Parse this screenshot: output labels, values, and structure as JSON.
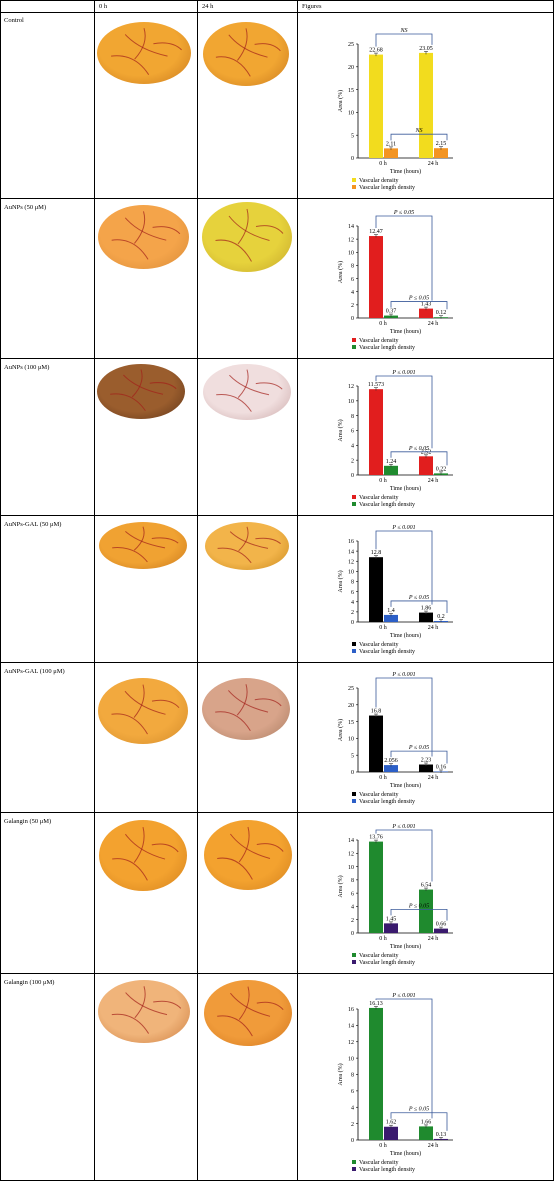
{
  "header": {
    "col0": "",
    "col1": "0 h",
    "col2": "24 h",
    "col3": "Figures"
  },
  "rows": [
    {
      "label": "Control"
    },
    {
      "label": "AuNPs (50 μM)"
    },
    {
      "label": "AuNPs (100 μM)"
    },
    {
      "label": "AuNPs-GAL (50 μM)"
    },
    {
      "label": "AuNPs-GAL (100 μM)"
    },
    {
      "label": "Galangin (50 μM)"
    },
    {
      "label": "Galangin (100 μM)"
    }
  ],
  "chart_data": [
    {
      "type": "bar",
      "categories": [
        "0 h",
        "24 h"
      ],
      "xlabel": "Time (hours)",
      "ylabel": "Area (%)",
      "ylim": [
        0,
        25
      ],
      "yticks": [
        0,
        5,
        10,
        15,
        20,
        25
      ],
      "series": [
        {
          "name": "Vascular density",
          "values": [
            22.68,
            23.05
          ],
          "labels": [
            "22.68",
            "23.05"
          ],
          "color": "#f2dc1e"
        },
        {
          "name": "Vascular length density",
          "values": [
            2.11,
            2.15
          ],
          "labels": [
            "2.11",
            "2.15"
          ],
          "color": "#f39422"
        }
      ],
      "annotations": [
        "NS",
        "NS"
      ]
    },
    {
      "type": "bar",
      "categories": [
        "0 h",
        "24 h"
      ],
      "xlabel": "Time (hours)",
      "ylabel": "Area (%)",
      "ylim": [
        0,
        14
      ],
      "yticks": [
        0,
        2,
        4,
        6,
        8,
        10,
        12,
        14
      ],
      "series": [
        {
          "name": "Vascular density",
          "values": [
            12.47,
            1.43
          ],
          "labels": [
            "12.47",
            "1.43"
          ],
          "color": "#e11e1e"
        },
        {
          "name": "Vascular length density",
          "values": [
            0.37,
            0.12
          ],
          "labels": [
            "0.37",
            "0.12"
          ],
          "color": "#1f8a2e"
        }
      ],
      "annotations": [
        "P ≤ 0.05",
        "P ≤ 0.05"
      ]
    },
    {
      "type": "bar",
      "categories": [
        "0 h",
        "24 h"
      ],
      "xlabel": "Time (hours)",
      "ylabel": "Area (%)",
      "ylim": [
        0,
        12
      ],
      "yticks": [
        0,
        2,
        4,
        6,
        8,
        10,
        12
      ],
      "series": [
        {
          "name": "Vascular density",
          "values": [
            11.573,
            2.52
          ],
          "labels": [
            "11.573",
            "2.52"
          ],
          "color": "#e11e1e"
        },
        {
          "name": "Vascular length density",
          "values": [
            1.24,
            0.22
          ],
          "labels": [
            "1.24",
            "0.22"
          ],
          "color": "#1f8a2e"
        }
      ],
      "annotations": [
        "P ≤ 0.001",
        "P ≤ 0.05"
      ]
    },
    {
      "type": "bar",
      "categories": [
        "0 h",
        "24 h"
      ],
      "xlabel": "Time (hours)",
      "ylabel": "Area (%)",
      "ylim": [
        0,
        16
      ],
      "yticks": [
        0,
        2,
        4,
        6,
        8,
        10,
        12,
        14,
        16
      ],
      "series": [
        {
          "name": "Vascular density",
          "values": [
            12.8,
            1.86
          ],
          "labels": [
            "12.8",
            "1.86"
          ],
          "color": "#000000"
        },
        {
          "name": "Vascular length density",
          "values": [
            1.4,
            0.2
          ],
          "labels": [
            "1.4",
            "0.2"
          ],
          "color": "#2c5fc7"
        }
      ],
      "annotations": [
        "P ≤ 0.001",
        "P ≤ 0.05"
      ]
    },
    {
      "type": "bar",
      "categories": [
        "0 h",
        "24 h"
      ],
      "xlabel": "Time (hours)",
      "ylabel": "Area (%)",
      "ylim": [
        0,
        25
      ],
      "yticks": [
        0,
        5,
        10,
        15,
        20,
        25
      ],
      "series": [
        {
          "name": "Vascular density",
          "values": [
            16.8,
            2.23
          ],
          "labels": [
            "16.8",
            "2.23"
          ],
          "color": "#000000"
        },
        {
          "name": "Vascular length density",
          "values": [
            2.056,
            0.16
          ],
          "labels": [
            "2.056",
            "0.16"
          ],
          "color": "#2c5fc7"
        }
      ],
      "annotations": [
        "P ≤ 0.001",
        "P ≤ 0.05"
      ]
    },
    {
      "type": "bar",
      "categories": [
        "0 h",
        "24 h"
      ],
      "xlabel": "Time (hours)",
      "ylabel": "Area (%)",
      "ylim": [
        0,
        14
      ],
      "yticks": [
        0,
        2,
        4,
        6,
        8,
        10,
        12,
        14
      ],
      "series": [
        {
          "name": "Vascular density",
          "values": [
            13.76,
            6.54
          ],
          "labels": [
            "13.76",
            "6.54"
          ],
          "color": "#1f8a2e"
        },
        {
          "name": "Vascular length density",
          "values": [
            1.45,
            0.66
          ],
          "labels": [
            "1.45",
            "0.66"
          ],
          "color": "#3a1a6e"
        }
      ],
      "annotations": [
        "P ≤ 0.001",
        "P ≤ 0.05"
      ]
    },
    {
      "type": "bar",
      "categories": [
        "0 h",
        "24 h"
      ],
      "xlabel": "Time (hours)",
      "ylabel": "Area (%)",
      "ylim": [
        0,
        16
      ],
      "yticks": [
        0,
        2,
        4,
        6,
        8,
        10,
        12,
        14,
        16
      ],
      "series": [
        {
          "name": "Vascular density",
          "values": [
            16.13,
            1.66
          ],
          "labels": [
            "16.13",
            "1.66"
          ],
          "color": "#1f8a2e"
        },
        {
          "name": "Vascular length density",
          "values": [
            1.62,
            0.13
          ],
          "labels": [
            "1.62",
            "0.13"
          ],
          "color": "#3a1a6e"
        }
      ],
      "annotations": [
        "P ≤ 0.001",
        "P ≤ 0.05"
      ]
    }
  ]
}
